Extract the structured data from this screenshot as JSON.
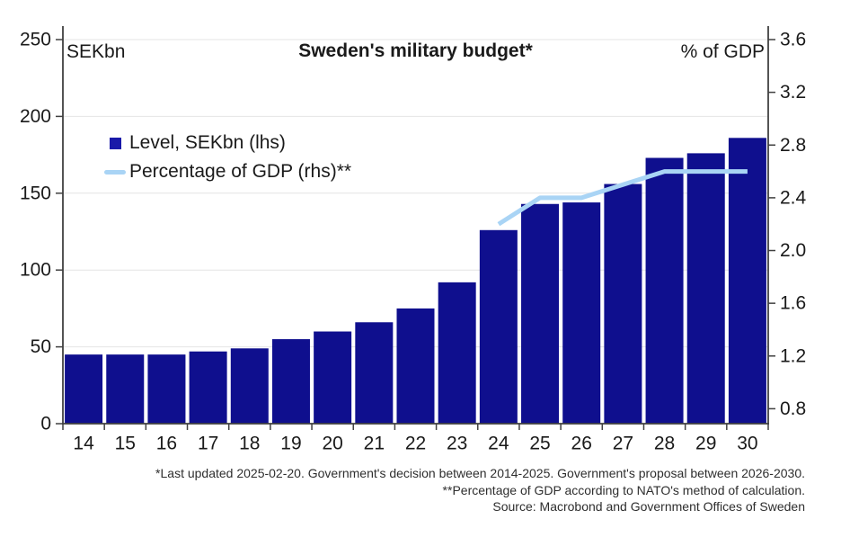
{
  "title": "Sweden's military budget*",
  "left_axis_unit": "SEKbn",
  "right_axis_unit": "% of GDP",
  "legend": {
    "items": [
      {
        "label": "Level, SEKbn (lhs)",
        "swatch": "bar-swatch"
      },
      {
        "label": "Percentage of GDP (rhs)**",
        "swatch": "line-swatch"
      }
    ]
  },
  "footnotes": [
    "*Last updated 2025-02-20. Government's decision between 2014-2025. Government's proposal between 2026-2030.",
    "**Percentage of GDP according to NATO's method of calculation.",
    "Source: Macrobond and Government Offices of Sweden"
  ],
  "colors": {
    "bar": "#0F0F8E",
    "legend_bar": "#1919A9",
    "line": "#A9D4F5",
    "axis": "#404040",
    "gridline": "#E4E4E4",
    "tick_text": "#1a1a1a",
    "footnote_text": "#2e2e2e",
    "background": "#FFFFFF"
  },
  "chart_data": {
    "type": "bar",
    "title": "Sweden's military budget*",
    "categories": [
      "14",
      "15",
      "16",
      "17",
      "18",
      "19",
      "20",
      "21",
      "22",
      "23",
      "24",
      "25",
      "26",
      "27",
      "28",
      "29",
      "30"
    ],
    "series": [
      {
        "name": "Level, SEKbn (lhs)",
        "type": "bar",
        "axis": "left",
        "values": [
          45,
          45,
          45,
          47,
          49,
          55,
          60,
          66,
          75,
          92,
          126,
          143,
          144,
          156,
          173,
          176,
          186
        ]
      },
      {
        "name": "Percentage of GDP (rhs)**",
        "type": "line",
        "axis": "right",
        "categories": [
          "24",
          "25",
          "26",
          "27",
          "28",
          "29",
          "30"
        ],
        "values": [
          2.2,
          2.4,
          2.4,
          2.5,
          2.6,
          2.6,
          2.6
        ]
      }
    ],
    "left_axis": {
      "label": "SEKbn",
      "range": [
        0,
        250
      ],
      "ticks": [
        "0",
        "50",
        "100",
        "150",
        "200",
        "250"
      ]
    },
    "right_axis": {
      "label": "% of GDP",
      "ticks": [
        "0.8",
        "1.2",
        "1.6",
        "2.0",
        "2.4",
        "2.8",
        "3.2",
        "3.6"
      ],
      "top_value": 3.6,
      "bottom_value": 0.8
    },
    "grid": "horizontal",
    "legend_position": "upper-left-inside"
  }
}
